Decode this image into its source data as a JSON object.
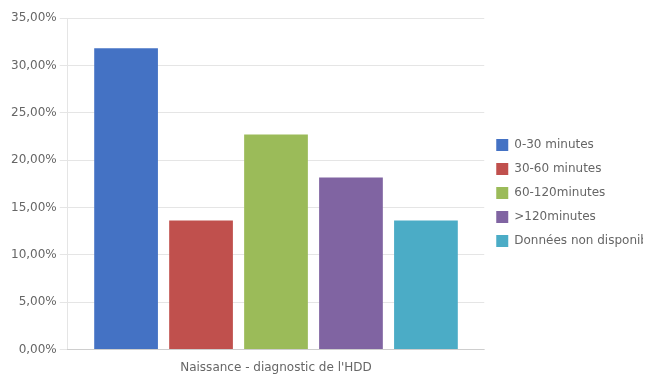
{
  "chart_data": {
    "type": "bar",
    "categories": [
      "Naissance - diagnostic de l'HDD"
    ],
    "series": [
      {
        "name": "0-30 minutes",
        "color": "#4472C4",
        "values": [
          0.3182
        ]
      },
      {
        "name": "30-60 minutes",
        "color": "#C0504D",
        "values": [
          0.1364
        ]
      },
      {
        "name": "60-120minutes",
        "color": "#9BBB59",
        "values": [
          0.2273
        ]
      },
      {
        "name": ">120minutes",
        "color": "#8064A2",
        "values": [
          0.1818
        ]
      },
      {
        "name": "Données non disponibles",
        "color": "#4BACC6",
        "values": [
          0.1364
        ]
      }
    ],
    "ylim": [
      0,
      0.35
    ],
    "yticks": [
      {
        "value": 0.0,
        "label": "0,00%"
      },
      {
        "value": 0.05,
        "label": "5,00%"
      },
      {
        "value": 0.1,
        "label": "10,00%"
      },
      {
        "value": 0.15,
        "label": "15,00%"
      },
      {
        "value": 0.2,
        "label": "20,00%"
      },
      {
        "value": 0.25,
        "label": "25,00%"
      },
      {
        "value": 0.3,
        "label": "30,00%"
      },
      {
        "value": 0.35,
        "label": "35,00%"
      }
    ],
    "grid": true,
    "legend": "right"
  }
}
